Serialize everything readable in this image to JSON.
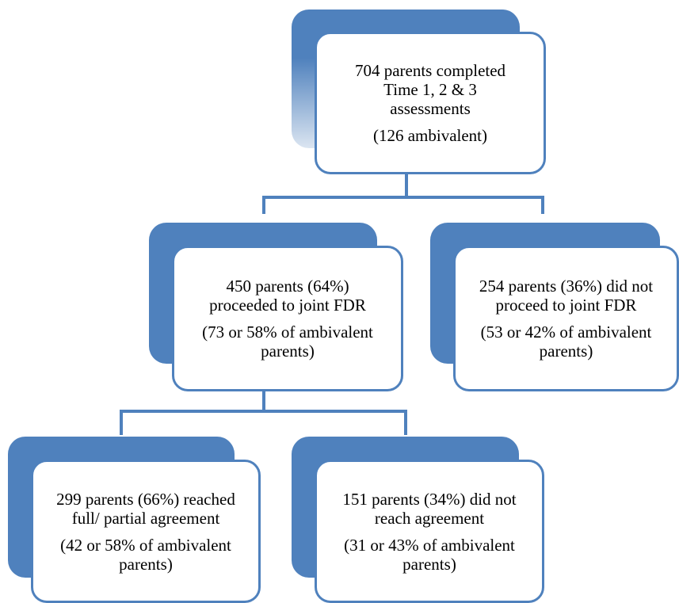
{
  "nodes": {
    "root": {
      "main": "704 parents completed Time 1, 2 & 3 assessments",
      "sub": "(126 ambivalent)"
    },
    "left": {
      "main": "450 parents (64%) proceeded to joint FDR",
      "sub": "(73 or 58% of ambivalent parents)"
    },
    "right": {
      "main": "254 parents (36%) did not proceed to joint FDR",
      "sub": "(53 or 42% of ambivalent parents)"
    },
    "ll": {
      "main": "299 parents (66%) reached full/ partial agreement",
      "sub": "(42 or 58% of ambivalent parents)"
    },
    "lr": {
      "main": "151 parents (34%) did not reach agreement",
      "sub": "(31 or 43% of ambivalent parents)"
    }
  },
  "colors": {
    "accent": "#4f81bd",
    "fade": "#dbe5f1",
    "box_fill": "#ffffff"
  }
}
